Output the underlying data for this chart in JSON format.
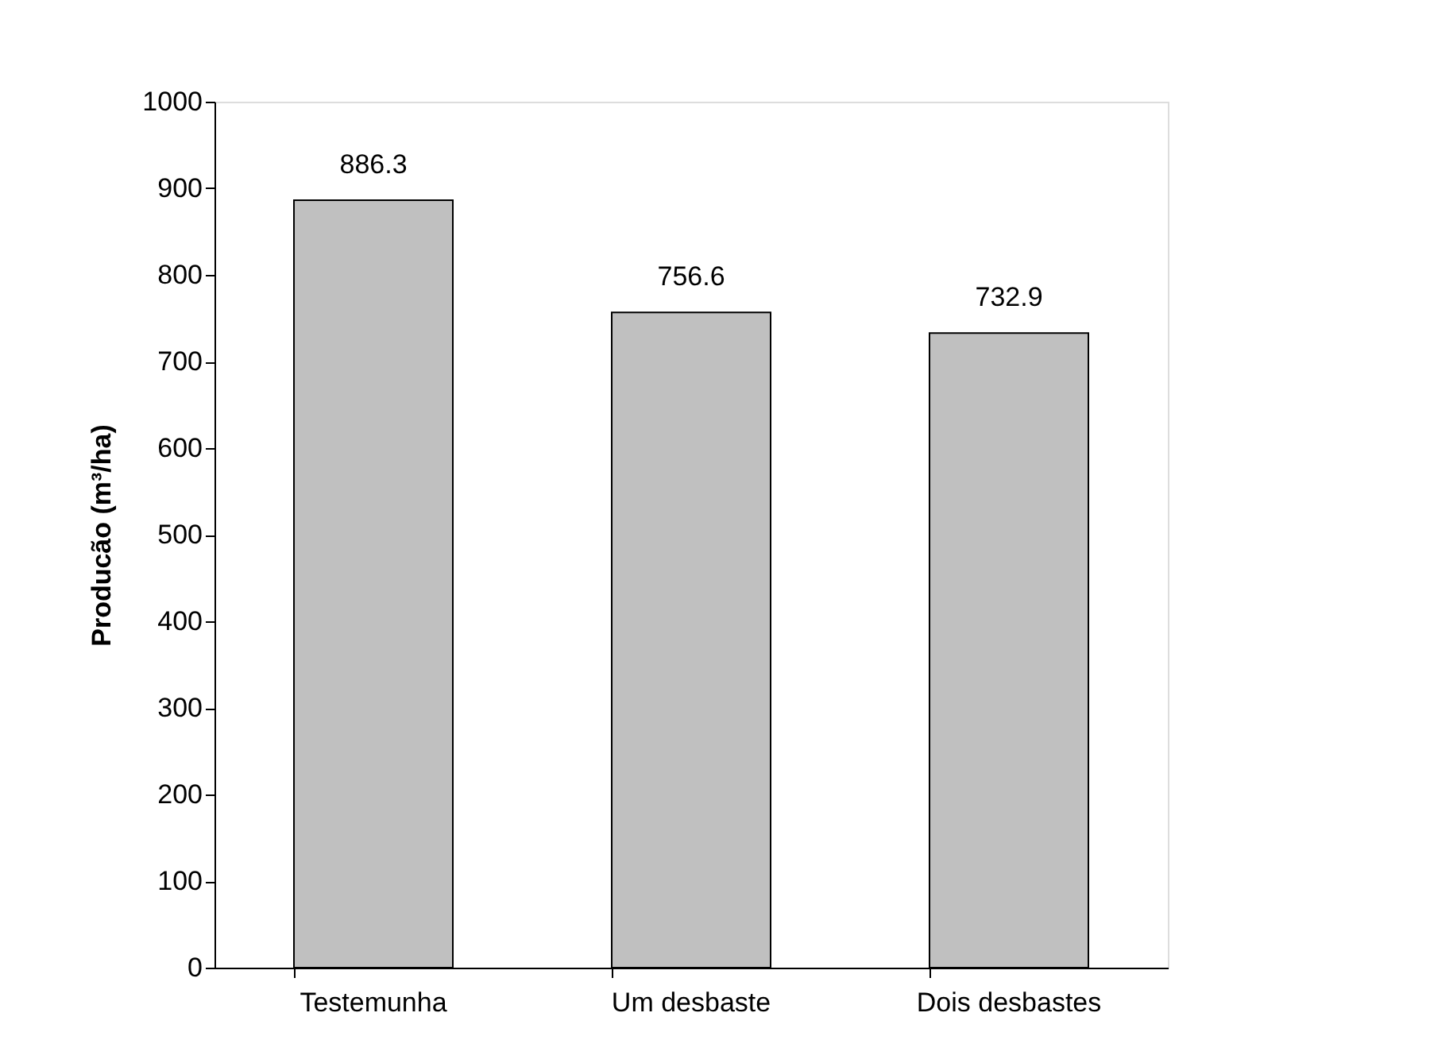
{
  "chart_data": {
    "type": "bar",
    "ylabel": "Producão (m³/ha)",
    "categories": [
      "Testemunha",
      "Um desbaste",
      "Dois desbastes"
    ],
    "values": [
      886.3,
      756.6,
      732.9
    ],
    "color": "#c0c0c0",
    "ylim": [
      0,
      1000
    ],
    "yticks": [
      0,
      100,
      200,
      300,
      400,
      500,
      600,
      700,
      800,
      900,
      1000
    ],
    "grid": false,
    "data_labels": true
  }
}
